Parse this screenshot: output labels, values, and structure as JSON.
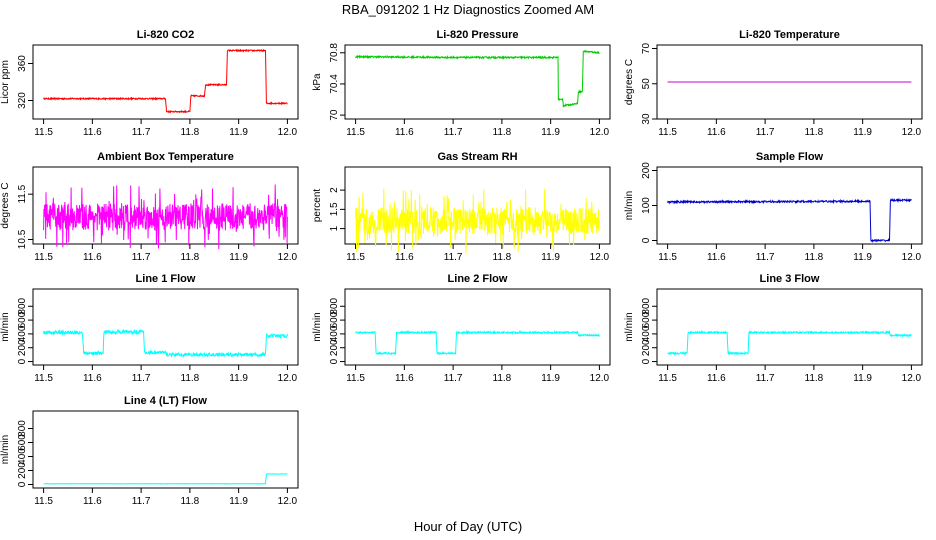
{
  "figure": {
    "title": "RBA_091202  1 Hz Diagnostics Zoomed AM",
    "xlabel": "Hour of Day (UTC)"
  },
  "chart_data": [
    {
      "type": "line",
      "title": "Li-820 CO2",
      "ylabel": "Licor ppm",
      "xlim": [
        11.5,
        12.0
      ],
      "xticks": [
        "11.5",
        "11.6",
        "11.7",
        "11.8",
        "11.9",
        "12.0"
      ],
      "ylim": [
        300,
        380
      ],
      "yticks": [
        320,
        360
      ],
      "color": "#ff0000",
      "series": [
        {
          "x": [
            11.5,
            11.75,
            11.752,
            11.8,
            11.802,
            11.83,
            11.832,
            11.875,
            11.877,
            11.955,
            11.957,
            12.0
          ],
          "y": [
            322,
            322,
            308,
            308,
            325,
            325,
            337,
            337,
            374,
            374,
            317,
            317
          ],
          "noise": 0.7
        }
      ]
    },
    {
      "type": "line",
      "title": "Li-820 Pressure",
      "ylabel": "kPa",
      "xlim": [
        11.5,
        12.0
      ],
      "xticks": [
        "11.5",
        "11.6",
        "11.7",
        "11.8",
        "11.9",
        "12.0"
      ],
      "ylim": [
        69.95,
        70.9
      ],
      "yticks": [
        70.0,
        70.4,
        70.8
      ],
      "color": "#00cc00",
      "series": [
        {
          "x": [
            11.5,
            11.7,
            11.915,
            11.916,
            11.925,
            11.926,
            11.955,
            11.957,
            11.965,
            11.967,
            12.0
          ],
          "y": [
            70.75,
            70.74,
            70.74,
            70.2,
            70.2,
            70.12,
            70.15,
            70.3,
            70.3,
            70.82,
            70.8
          ],
          "noise": 0.01
        }
      ]
    },
    {
      "type": "line",
      "title": "Li-820 Temperature",
      "ylabel": "degrees C",
      "xlim": [
        11.5,
        12.0
      ],
      "xticks": [
        "11.5",
        "11.6",
        "11.7",
        "11.8",
        "11.9",
        "12.0"
      ],
      "ylim": [
        30,
        72
      ],
      "yticks": [
        30,
        50,
        70
      ],
      "color": "#cc00cc",
      "series": [
        {
          "x": [
            11.5,
            12.0
          ],
          "y": [
            51,
            51
          ],
          "noise": 0
        }
      ]
    },
    {
      "type": "line",
      "title": "Ambient Box Temperature",
      "ylabel": "degrees C",
      "xlim": [
        11.5,
        12.0
      ],
      "xticks": [
        "11.5",
        "11.6",
        "11.7",
        "11.8",
        "11.9",
        "12.0"
      ],
      "ylim": [
        10.4,
        12.1
      ],
      "yticks": [
        10.5,
        11.5
      ],
      "color": "#ff00ff",
      "series": [
        {
          "x": [
            11.5,
            12.0
          ],
          "y": [
            11.0,
            11.0
          ],
          "noise": 0.3,
          "spiky": true
        }
      ]
    },
    {
      "type": "line",
      "title": "Gas Stream RH",
      "ylabel": "percent",
      "xlim": [
        11.5,
        12.0
      ],
      "xticks": [
        "11.5",
        "11.6",
        "11.7",
        "11.8",
        "11.9",
        "12.0"
      ],
      "ylim": [
        0.6,
        2.6
      ],
      "yticks": [
        1.0,
        1.5,
        2.0
      ],
      "color": "#ffff00",
      "series": [
        {
          "x": [
            11.5,
            12.0
          ],
          "y": [
            1.2,
            1.2
          ],
          "noise": 0.35,
          "spiky": true
        }
      ]
    },
    {
      "type": "line",
      "title": "Sample Flow",
      "ylabel": "ml/min",
      "xlim": [
        11.5,
        12.0
      ],
      "xticks": [
        "11.5",
        "11.6",
        "11.7",
        "11.8",
        "11.9",
        "12.0"
      ],
      "ylim": [
        -10,
        210
      ],
      "yticks": [
        0,
        100,
        200
      ],
      "color": "#0000cc",
      "series": [
        {
          "x": [
            11.5,
            11.915,
            11.917,
            11.955,
            11.957,
            12.0
          ],
          "y": [
            110,
            112,
            0,
            0,
            115,
            115
          ],
          "noise": 2.5
        }
      ]
    },
    {
      "type": "line",
      "title": "Line 1 Flow",
      "ylabel": "ml/min",
      "xlim": [
        11.5,
        12.0
      ],
      "xticks": [
        "11.5",
        "11.6",
        "11.7",
        "11.8",
        "11.9",
        "12.0"
      ],
      "ylim": [
        -50,
        1050
      ],
      "yticks": [
        0,
        200,
        400,
        600,
        800
      ],
      "color": "#00ffff",
      "series": [
        {
          "x": [
            11.5,
            11.58,
            11.582,
            11.622,
            11.624,
            11.705,
            11.707,
            11.75,
            11.752,
            11.955,
            11.957,
            12.0
          ],
          "y": [
            420,
            420,
            120,
            120,
            430,
            430,
            130,
            130,
            100,
            100,
            370,
            370
          ],
          "noise": 25
        }
      ]
    },
    {
      "type": "line",
      "title": "Line 2 Flow",
      "ylabel": "ml/min",
      "xlim": [
        11.5,
        12.0
      ],
      "xticks": [
        "11.5",
        "11.6",
        "11.7",
        "11.8",
        "11.9",
        "12.0"
      ],
      "ylim": [
        -50,
        1050
      ],
      "yticks": [
        0,
        200,
        400,
        600,
        800
      ],
      "color": "#00ffff",
      "series": [
        {
          "x": [
            11.5,
            11.54,
            11.542,
            11.582,
            11.584,
            11.665,
            11.667,
            11.705,
            11.707,
            11.955,
            11.957,
            12.0
          ],
          "y": [
            420,
            420,
            120,
            120,
            420,
            420,
            120,
            120,
            420,
            420,
            380,
            380
          ],
          "noise": 12
        }
      ]
    },
    {
      "type": "line",
      "title": "Line 3 Flow",
      "ylabel": "ml/min",
      "xlim": [
        11.5,
        12.0
      ],
      "xticks": [
        "11.5",
        "11.6",
        "11.7",
        "11.8",
        "11.9",
        "12.0"
      ],
      "ylim": [
        -50,
        1050
      ],
      "yticks": [
        0,
        200,
        400,
        600,
        800
      ],
      "color": "#00ffff",
      "series": [
        {
          "x": [
            11.5,
            11.54,
            11.542,
            11.622,
            11.624,
            11.665,
            11.667,
            11.955,
            11.957,
            12.0
          ],
          "y": [
            120,
            120,
            420,
            420,
            120,
            120,
            420,
            420,
            380,
            380
          ],
          "noise": 12
        }
      ]
    },
    {
      "type": "line",
      "title": "Line 4 (LT) Flow",
      "ylabel": "ml/min",
      "xlim": [
        11.5,
        12.0
      ],
      "xticks": [
        "11.5",
        "11.6",
        "11.7",
        "11.8",
        "11.9",
        "12.0"
      ],
      "ylim": [
        -50,
        1050
      ],
      "yticks": [
        0,
        200,
        400,
        600,
        800
      ],
      "color": "#00ffff",
      "series": [
        {
          "x": [
            11.5,
            11.955,
            11.957,
            12.0
          ],
          "y": [
            10,
            10,
            150,
            150
          ],
          "noise": 2
        }
      ]
    }
  ]
}
